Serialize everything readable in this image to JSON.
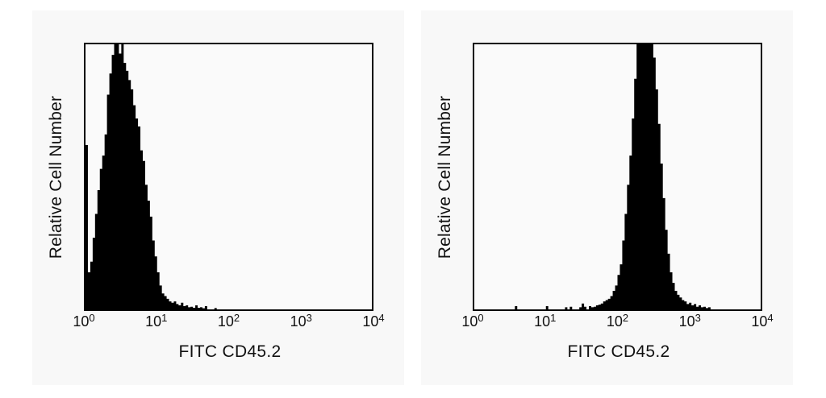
{
  "page": {
    "background": "#ffffff",
    "panel_background": "#f8f8f8",
    "ink": "#000000"
  },
  "chart_data": [
    {
      "type": "histogram",
      "subtype": "flow-cytometry-filled",
      "title": "",
      "xlabel": "FITC CD45.2",
      "ylabel": "Relative Cell Number",
      "x_scale": "log10",
      "x_range": [
        1,
        10000
      ],
      "grid": false,
      "legend": null,
      "fill_color": "#000000",
      "peak_x_approx": 3,
      "peak_clipped_at_top": true,
      "x_ticks": [
        {
          "base": "10",
          "exp": "0"
        },
        {
          "base": "10",
          "exp": "1"
        },
        {
          "base": "10",
          "exp": "2"
        },
        {
          "base": "10",
          "exp": "3"
        },
        {
          "base": "10",
          "exp": "4"
        }
      ],
      "bins_per_decade": 30,
      "heights_rel": [
        0.62,
        0.14,
        0.18,
        0.27,
        0.36,
        0.45,
        0.53,
        0.58,
        0.66,
        0.81,
        0.89,
        0.96,
        1.0,
        1.0,
        0.965,
        1.0,
        0.93,
        0.9,
        0.865,
        0.83,
        0.77,
        0.72,
        0.69,
        0.6,
        0.56,
        0.47,
        0.41,
        0.35,
        0.26,
        0.2,
        0.14,
        0.09,
        0.06,
        0.05,
        0.04,
        0.03,
        0.025,
        0.03,
        0.02,
        0.015,
        0.025,
        0.012,
        0.015,
        0.008,
        0.01,
        0.006,
        0.015,
        0.006,
        0.008,
        0.004,
        0.012,
        0,
        0,
        0,
        0.005,
        0,
        0,
        0,
        0,
        0,
        0,
        0,
        0,
        0,
        0,
        0,
        0,
        0,
        0,
        0,
        0,
        0,
        0,
        0,
        0,
        0,
        0,
        0,
        0,
        0,
        0,
        0,
        0,
        0,
        0,
        0,
        0,
        0,
        0,
        0,
        0,
        0,
        0,
        0,
        0,
        0,
        0,
        0,
        0,
        0,
        0,
        0,
        0,
        0,
        0,
        0,
        0,
        0,
        0,
        0,
        0,
        0,
        0,
        0,
        0,
        0,
        0,
        0,
        0,
        0
      ]
    },
    {
      "type": "histogram",
      "subtype": "flow-cytometry-filled",
      "title": "",
      "xlabel": "FITC CD45.2",
      "ylabel": "Relative Cell Number",
      "x_scale": "log10",
      "x_range": [
        1,
        10000
      ],
      "grid": false,
      "legend": null,
      "fill_color": "#000000",
      "peak_x_approx": 250,
      "peak_clipped_at_top": true,
      "x_ticks": [
        {
          "base": "10",
          "exp": "0"
        },
        {
          "base": "10",
          "exp": "1"
        },
        {
          "base": "10",
          "exp": "2"
        },
        {
          "base": "10",
          "exp": "3"
        },
        {
          "base": "10",
          "exp": "4"
        }
      ],
      "bins_per_decade": 30,
      "heights_rel": [
        0,
        0,
        0,
        0,
        0,
        0,
        0,
        0,
        0,
        0,
        0,
        0,
        0,
        0,
        0,
        0,
        0,
        0.012,
        0,
        0,
        0,
        0,
        0,
        0,
        0,
        0,
        0,
        0,
        0,
        0,
        0.012,
        0,
        0,
        0,
        0,
        0,
        0,
        0,
        0.008,
        0,
        0.01,
        0,
        0,
        0,
        0.008,
        0.022,
        0.01,
        0,
        0.012,
        0.008,
        0.01,
        0.015,
        0.018,
        0.022,
        0.03,
        0.035,
        0.04,
        0.05,
        0.07,
        0.09,
        0.13,
        0.17,
        0.26,
        0.36,
        0.47,
        0.58,
        0.72,
        0.87,
        1.0,
        1.0,
        1.0,
        1.0,
        1.0,
        1.0,
        1.0,
        0.95,
        0.83,
        0.7,
        0.55,
        0.42,
        0.3,
        0.21,
        0.14,
        0.1,
        0.07,
        0.055,
        0.045,
        0.035,
        0.03,
        0.02,
        0.025,
        0.015,
        0.02,
        0.01,
        0.015,
        0.008,
        0.01,
        0.005,
        0.008,
        0,
        0,
        0,
        0,
        0,
        0,
        0,
        0,
        0,
        0,
        0,
        0,
        0,
        0,
        0,
        0,
        0,
        0,
        0,
        0,
        0
      ]
    }
  ]
}
